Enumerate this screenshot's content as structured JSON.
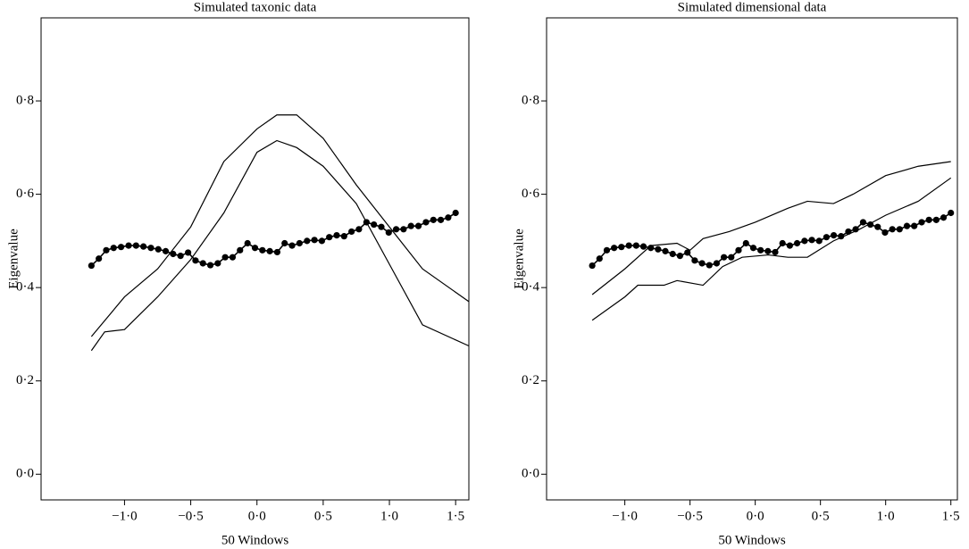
{
  "chart_data": [
    {
      "type": "line",
      "title": "Simulated taxonic data",
      "xlabel": "50 Windows",
      "ylabel": "Eigenvalue",
      "xlim": [
        -1.63,
        1.6
      ],
      "ylim": [
        -0.055,
        0.978
      ],
      "xticks": [
        {
          "value": -1.0,
          "label": "−1·0"
        },
        {
          "value": -0.5,
          "label": "−0·5"
        },
        {
          "value": 0,
          "label": "0·0"
        },
        {
          "value": 0.5,
          "label": "0·5"
        },
        {
          "value": 1.0,
          "label": "1·0"
        },
        {
          "value": 1.5,
          "label": "1·5"
        }
      ],
      "yticks": [
        {
          "value": 0,
          "label": "0·0"
        },
        {
          "value": 0.2,
          "label": "0·2"
        },
        {
          "value": 0.4,
          "label": "0·4"
        },
        {
          "value": 0.6,
          "label": "0·6"
        },
        {
          "value": 0.8,
          "label": "0·8"
        }
      ],
      "series": [
        {
          "color": "#000000",
          "markers": false,
          "x": [
            -1.25,
            -1.0,
            -0.75,
            -0.5,
            -0.25,
            0.0,
            0.15,
            0.3,
            0.5,
            0.75,
            1.0,
            1.25,
            1.6
          ],
          "values": [
            0.295,
            0.38,
            0.44,
            0.53,
            0.67,
            0.74,
            0.77,
            0.77,
            0.72,
            0.62,
            0.53,
            0.44,
            0.37
          ]
        },
        {
          "color": "#000000",
          "markers": false,
          "x": [
            -1.25,
            -1.15,
            -1.0,
            -0.75,
            -0.5,
            -0.25,
            0.0,
            0.15,
            0.3,
            0.5,
            0.75,
            1.0,
            1.25,
            1.6
          ],
          "values": [
            0.265,
            0.305,
            0.31,
            0.38,
            0.46,
            0.56,
            0.69,
            0.715,
            0.7,
            0.66,
            0.58,
            0.45,
            0.32,
            0.275
          ]
        },
        {
          "color": "#000000",
          "markers": true,
          "x": [
            -1.25,
            -1.194,
            -1.138,
            -1.082,
            -1.026,
            -0.969,
            -0.913,
            -0.857,
            -0.801,
            -0.745,
            -0.689,
            -0.633,
            -0.577,
            -0.52,
            -0.464,
            -0.408,
            -0.352,
            -0.296,
            -0.24,
            -0.184,
            -0.128,
            -0.071,
            -0.015,
            0.041,
            0.097,
            0.153,
            0.209,
            0.265,
            0.321,
            0.378,
            0.434,
            0.49,
            0.546,
            0.602,
            0.658,
            0.714,
            0.77,
            0.827,
            0.883,
            0.939,
            0.995,
            1.051,
            1.107,
            1.163,
            1.219,
            1.276,
            1.332,
            1.388,
            1.444,
            1.5
          ],
          "values": [
            0.447,
            0.462,
            0.48,
            0.485,
            0.487,
            0.49,
            0.49,
            0.488,
            0.485,
            0.482,
            0.478,
            0.472,
            0.468,
            0.475,
            0.458,
            0.452,
            0.448,
            0.452,
            0.465,
            0.465,
            0.48,
            0.495,
            0.485,
            0.48,
            0.478,
            0.476,
            0.495,
            0.49,
            0.495,
            0.5,
            0.502,
            0.5,
            0.508,
            0.512,
            0.51,
            0.52,
            0.525,
            0.54,
            0.535,
            0.53,
            0.518,
            0.525,
            0.525,
            0.532,
            0.532,
            0.54,
            0.545,
            0.545,
            0.55,
            0.56
          ]
        }
      ]
    },
    {
      "type": "line",
      "title": "Simulated dimensional data",
      "xlabel": "50 Windows",
      "ylabel": "Eigenvalue",
      "xlim": [
        -1.6,
        1.55
      ],
      "ylim": [
        -0.055,
        0.978
      ],
      "xticks": [
        {
          "value": -1.0,
          "label": "−1·0"
        },
        {
          "value": -0.5,
          "label": "−0·5"
        },
        {
          "value": 0,
          "label": "0·0"
        },
        {
          "value": 0.5,
          "label": "0·5"
        },
        {
          "value": 1.0,
          "label": "1·0"
        },
        {
          "value": 1.5,
          "label": "1·5"
        }
      ],
      "yticks": [
        {
          "value": 0,
          "label": "0·0"
        },
        {
          "value": 0.2,
          "label": "0·2"
        },
        {
          "value": 0.4,
          "label": "0·4"
        },
        {
          "value": 0.6,
          "label": "0·6"
        },
        {
          "value": 0.8,
          "label": "0·8"
        }
      ],
      "series": [
        {
          "color": "#000000",
          "markers": false,
          "x": [
            -1.25,
            -1.0,
            -0.8,
            -0.6,
            -0.5,
            -0.4,
            -0.2,
            0.0,
            0.25,
            0.4,
            0.6,
            0.75,
            1.0,
            1.25,
            1.5
          ],
          "values": [
            0.385,
            0.44,
            0.49,
            0.495,
            0.48,
            0.505,
            0.52,
            0.54,
            0.57,
            0.585,
            0.58,
            0.6,
            0.64,
            0.66,
            0.67
          ]
        },
        {
          "color": "#000000",
          "markers": false,
          "x": [
            -1.25,
            -1.0,
            -0.9,
            -0.7,
            -0.6,
            -0.4,
            -0.25,
            -0.1,
            0.1,
            0.25,
            0.4,
            0.6,
            0.8,
            1.0,
            1.25,
            1.5
          ],
          "values": [
            0.33,
            0.38,
            0.405,
            0.405,
            0.415,
            0.405,
            0.445,
            0.465,
            0.47,
            0.465,
            0.465,
            0.5,
            0.525,
            0.555,
            0.585,
            0.635
          ]
        },
        {
          "color": "#000000",
          "markers": true,
          "x": [
            -1.25,
            -1.194,
            -1.138,
            -1.082,
            -1.026,
            -0.969,
            -0.913,
            -0.857,
            -0.801,
            -0.745,
            -0.689,
            -0.633,
            -0.577,
            -0.52,
            -0.464,
            -0.408,
            -0.352,
            -0.296,
            -0.24,
            -0.184,
            -0.128,
            -0.071,
            -0.015,
            0.041,
            0.097,
            0.153,
            0.209,
            0.265,
            0.321,
            0.378,
            0.434,
            0.49,
            0.546,
            0.602,
            0.658,
            0.714,
            0.77,
            0.827,
            0.883,
            0.939,
            0.995,
            1.051,
            1.107,
            1.163,
            1.219,
            1.276,
            1.332,
            1.388,
            1.444,
            1.5
          ],
          "values": [
            0.447,
            0.462,
            0.48,
            0.485,
            0.487,
            0.49,
            0.49,
            0.488,
            0.485,
            0.482,
            0.478,
            0.472,
            0.468,
            0.475,
            0.458,
            0.452,
            0.448,
            0.452,
            0.465,
            0.465,
            0.48,
            0.495,
            0.485,
            0.48,
            0.478,
            0.476,
            0.495,
            0.49,
            0.495,
            0.5,
            0.502,
            0.5,
            0.508,
            0.512,
            0.51,
            0.52,
            0.525,
            0.54,
            0.535,
            0.53,
            0.518,
            0.525,
            0.525,
            0.532,
            0.532,
            0.54,
            0.545,
            0.545,
            0.55,
            0.56
          ]
        }
      ]
    }
  ]
}
